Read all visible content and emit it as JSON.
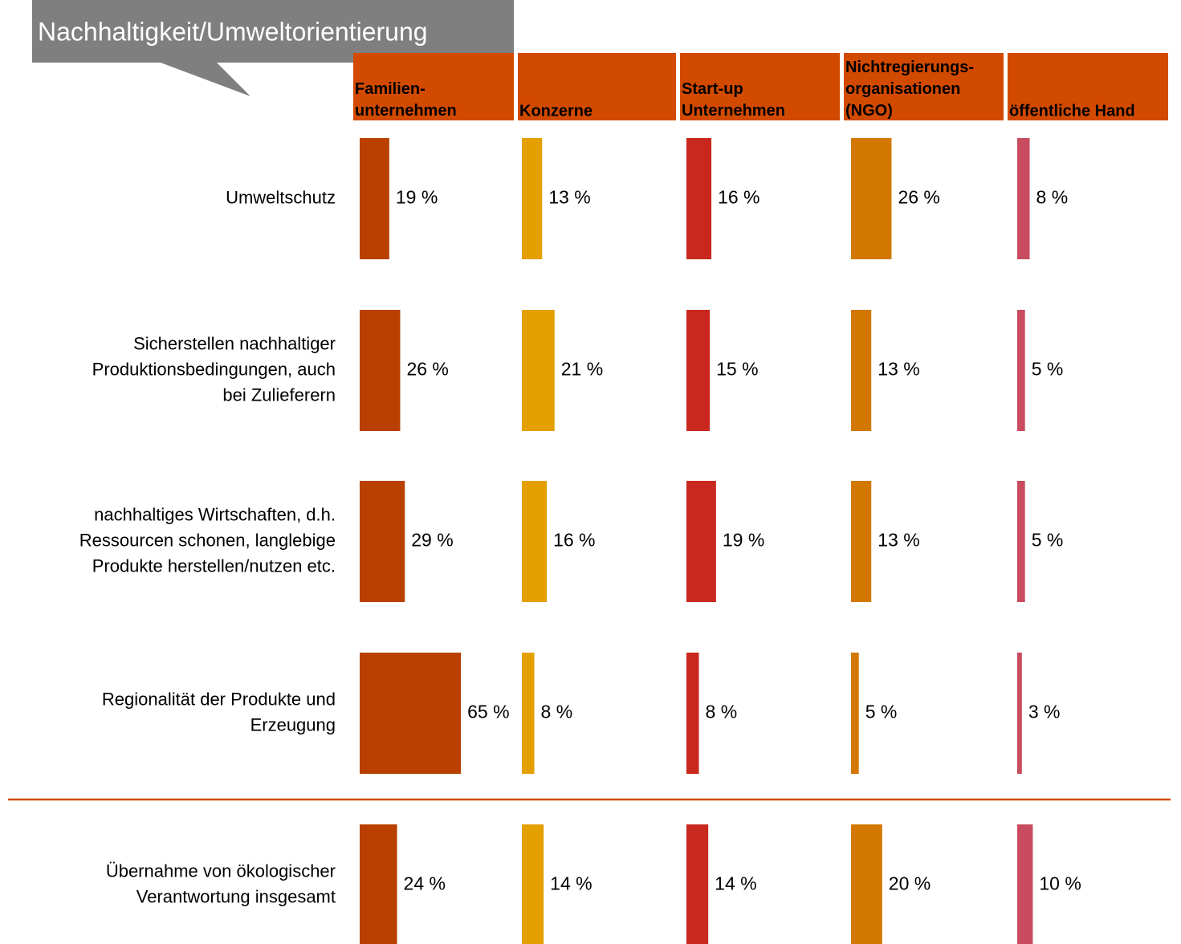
{
  "chart_data": {
    "type": "bar-grid",
    "title": "Nachhaltigkeit/Umweltorientierung",
    "categories": [
      "Umweltschutz",
      "Sicherstellen nachhaltiger\nProduktionsbedingungen, auch\nbei Zulieferern",
      "nachhaltiges Wirtschaften, d.h.\nRessourcen schonen, langlebige\nProdukte herstellen/nutzen etc.",
      "Regionalität der Produkte und\nErzeugung",
      "Übernahme von ökologischer\nVerantwortung insgesamt"
    ],
    "header_color": "#d24a00",
    "series": [
      {
        "name": "Familien-\nunternehmen",
        "color": "#b94000",
        "values": [
          19,
          26,
          29,
          65,
          24
        ],
        "value_labels": [
          "19 %",
          "26 %",
          "29 %",
          "65 %",
          "24 %"
        ]
      },
      {
        "name": "Konzerne",
        "color": "#e3a000",
        "values": [
          13,
          21,
          16,
          8,
          14
        ],
        "value_labels": [
          "13 %",
          "21 %",
          "16 %",
          "8 %",
          "14 %"
        ]
      },
      {
        "name": "Start-up\nUnternehmen",
        "color": "#c8281e",
        "values": [
          16,
          15,
          19,
          8,
          14
        ],
        "value_labels": [
          "16 %",
          "15 %",
          "19 %",
          "8 %",
          "14 %"
        ]
      },
      {
        "name": "Nichtregierungs-\norganisationen\n(NGO)",
        "color": "#d27800",
        "values": [
          26,
          13,
          13,
          5,
          20
        ],
        "value_labels": [
          "26 %",
          "13 %",
          "13 %",
          "5 %",
          "20 %"
        ]
      },
      {
        "name": "öffentliche Hand",
        "color": "#c84b5f",
        "values": [
          8,
          5,
          5,
          3,
          10
        ],
        "value_labels": [
          "8 %",
          "5 %",
          "5 %",
          "3 %",
          "10 %"
        ]
      }
    ]
  }
}
